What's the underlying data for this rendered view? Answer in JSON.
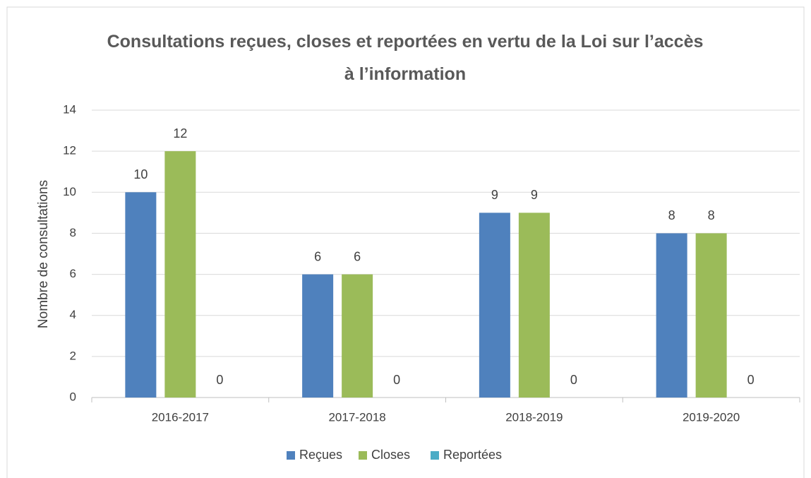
{
  "chart_data": {
    "type": "bar",
    "title": "Consultations reçues, closes et reportées en vertu de la Loi sur l’accès à l’information",
    "ylabel": "Nombre de consultations",
    "categories": [
      "2016-2017",
      "2017-2018",
      "2018-2019",
      "2019-2020"
    ],
    "series": [
      {
        "name": "Reçues",
        "color": "#4f81bd",
        "values": [
          10,
          6,
          9,
          8
        ]
      },
      {
        "name": "Closes",
        "color": "#9bbb59",
        "values": [
          12,
          6,
          9,
          8
        ]
      },
      {
        "name": "Reportées",
        "color": "#4bacc6",
        "values": [
          0,
          0,
          0,
          0
        ]
      }
    ],
    "ylim": [
      0,
      14
    ],
    "yticks": [
      0,
      2,
      4,
      6,
      8,
      10,
      12,
      14
    ],
    "grid": true,
    "legend": "bottom"
  }
}
